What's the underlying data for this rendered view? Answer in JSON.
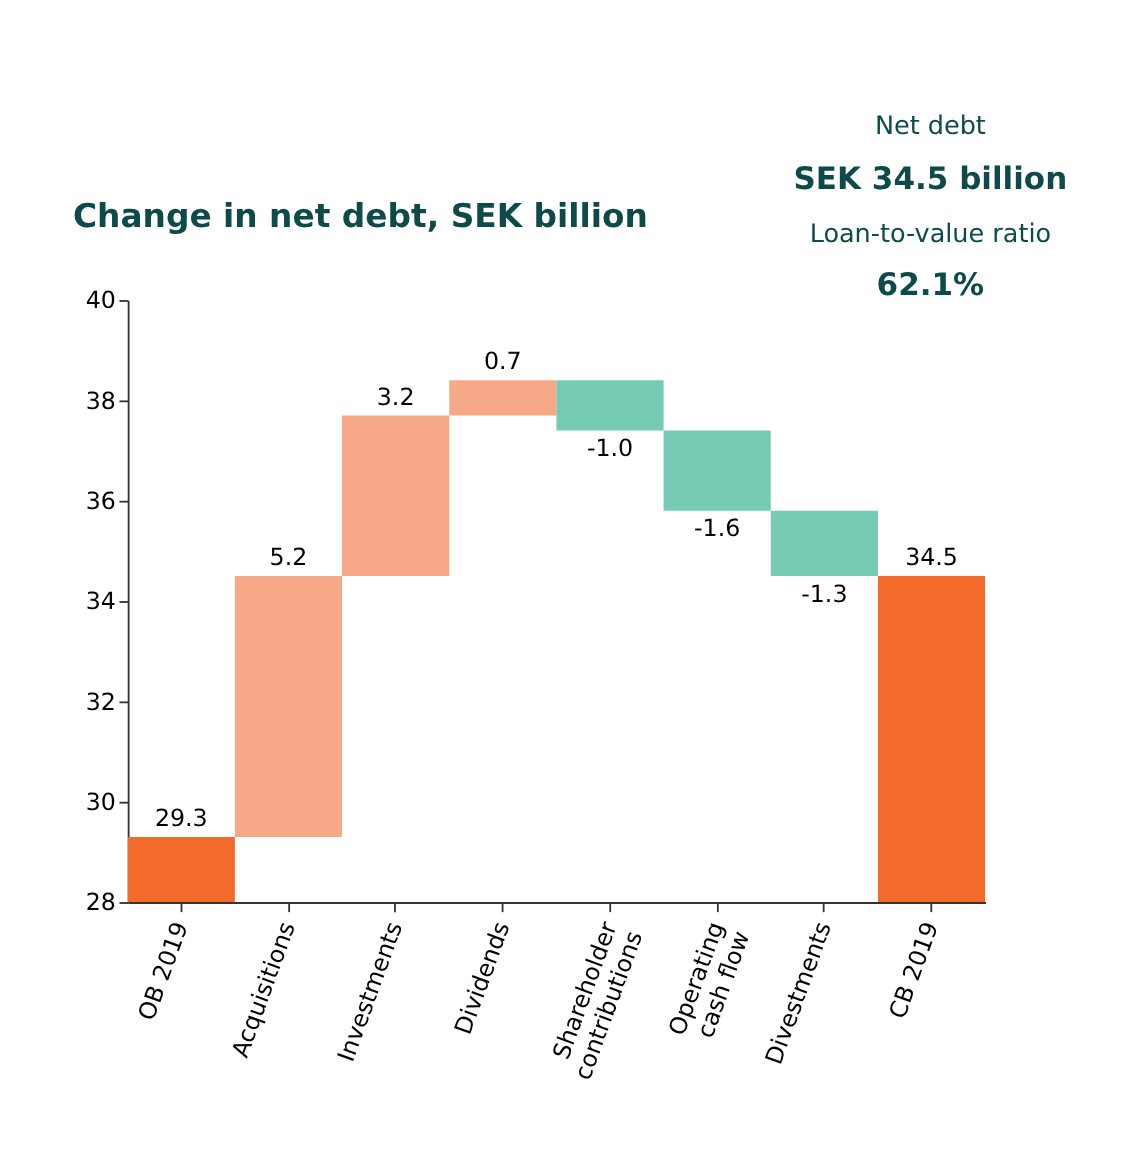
{
  "chart_data": {
    "type": "bar",
    "title": "Change in net debt, SEK billion",
    "categories": [
      "OB 2019",
      "Acquisitions",
      "Investments",
      "Dividends",
      "Shareholder contributions",
      "Operating cash flow",
      "Divestments",
      "CB 2019"
    ],
    "values": [
      29.3,
      5.2,
      3.2,
      0.7,
      -1.0,
      -1.6,
      -1.3,
      34.5
    ],
    "base": [
      null,
      29.3,
      34.5,
      37.7,
      38.4,
      37.4,
      35.8,
      null
    ],
    "colors": [
      "#f26b2a",
      "#f7a886",
      "#f7a886",
      "#f7a886",
      "#76cbb4",
      "#76cbb4",
      "#76cbb4",
      "#f26b2a"
    ],
    "ylim": [
      28,
      40
    ],
    "yticks": [
      28,
      30,
      32,
      34,
      36,
      38,
      40
    ],
    "value_labels": [
      "29.3",
      "5.2",
      "3.2",
      "0.7",
      "-1.0",
      "-1.6",
      "-1.3",
      "34.5"
    ],
    "grid": false,
    "annotations": [
      "Net debt",
      "SEK 34.5 billion",
      "Loan-to-value ratio",
      "62.1%"
    ]
  }
}
